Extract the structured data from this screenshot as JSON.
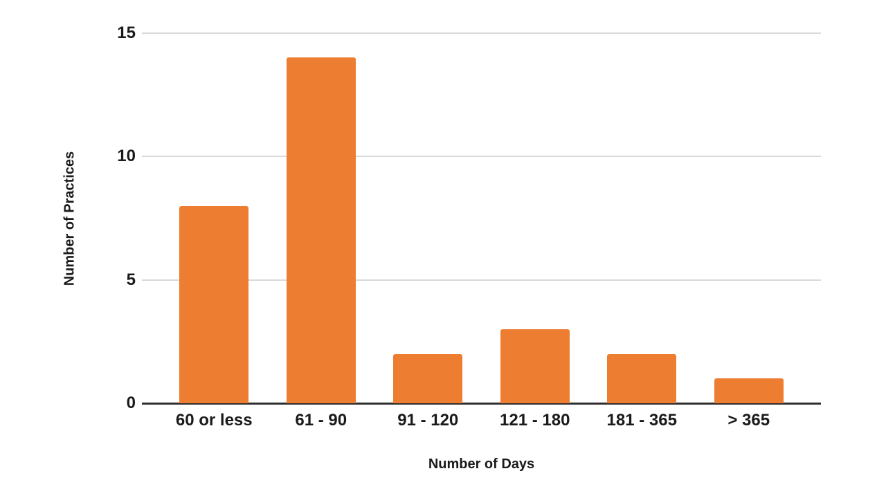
{
  "chart_data": {
    "type": "bar",
    "categories": [
      "60 or less",
      "61 - 90",
      "91 - 120",
      "121 - 180",
      "181 - 365",
      "> 365"
    ],
    "values": [
      8,
      14,
      2,
      3,
      2,
      1
    ],
    "title": "",
    "xlabel": "Number of Days",
    "ylabel": "Number of Practices",
    "yticks": [
      0,
      5,
      10,
      15
    ],
    "ylim": [
      0,
      15
    ],
    "grid": true,
    "legend_position": "none",
    "bar_color": "#ED7D31",
    "gridline_color": "#D9D9D9",
    "axis_line_color": "#2E2E2E",
    "text_color": "#1A1A1A",
    "background_color": "#FFFFFF"
  }
}
